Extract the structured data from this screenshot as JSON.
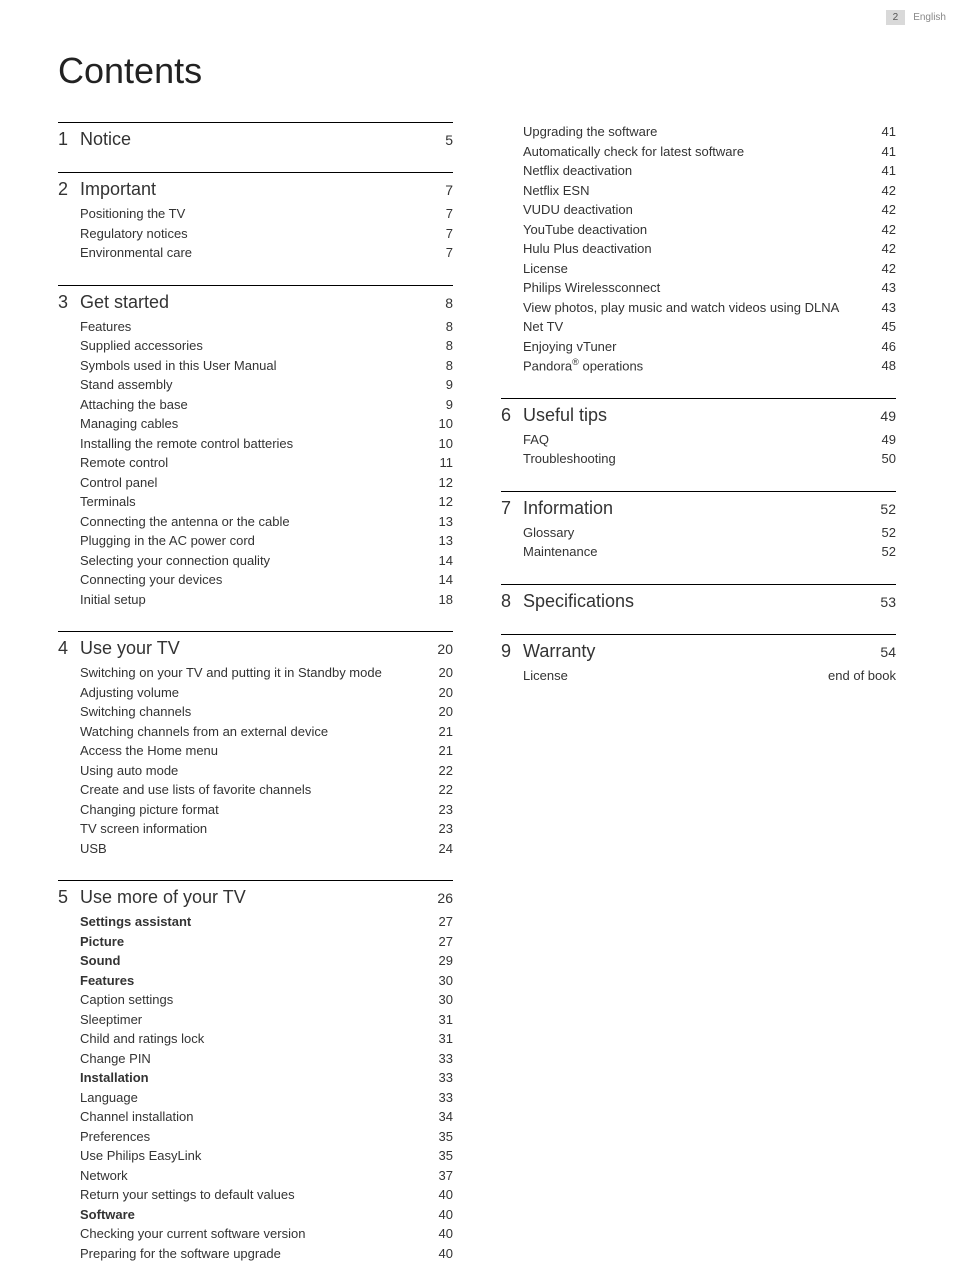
{
  "header": {
    "page_number": "2",
    "language": "English"
  },
  "title": "Contents",
  "columns": [
    [
      {
        "num": "1",
        "title": "Notice",
        "page": "5",
        "entries": []
      },
      {
        "num": "2",
        "title": "Important",
        "page": "7",
        "entries": [
          {
            "label": "Positioning the TV",
            "page": "7"
          },
          {
            "label": "Regulatory notices",
            "page": "7"
          },
          {
            "label": "Environmental care",
            "page": "7"
          }
        ]
      },
      {
        "num": "3",
        "title": "Get started",
        "page": "8",
        "entries": [
          {
            "label": "Features",
            "page": "8"
          },
          {
            "label": "Supplied accessories",
            "page": "8"
          },
          {
            "label": "Symbols used in this User Manual",
            "page": "8"
          },
          {
            "label": "Stand assembly",
            "page": "9"
          },
          {
            "label": "Attaching the base",
            "page": "9"
          },
          {
            "label": "Managing cables",
            "page": "10"
          },
          {
            "label": "Installing the remote control batteries",
            "page": "10"
          },
          {
            "label": "Remote control",
            "page": "11"
          },
          {
            "label": "Control panel",
            "page": "12"
          },
          {
            "label": "Terminals",
            "page": "12"
          },
          {
            "label": "Connecting the antenna or the cable",
            "page": "13"
          },
          {
            "label": "Plugging in the AC power cord",
            "page": "13"
          },
          {
            "label": "Selecting your connection quality",
            "page": "14"
          },
          {
            "label": "Connecting your devices",
            "page": "14"
          },
          {
            "label": "Initial setup",
            "page": "18"
          }
        ]
      },
      {
        "num": "4",
        "title": "Use your TV",
        "page": "20",
        "entries": [
          {
            "label": "Switching on your TV and putting it in Standby mode",
            "page": "20"
          },
          {
            "label": "Adjusting volume",
            "page": "20"
          },
          {
            "label": "Switching channels",
            "page": "20"
          },
          {
            "label": "Watching channels from an external device",
            "page": "21"
          },
          {
            "label": "Access the Home menu",
            "page": "21"
          },
          {
            "label": "Using auto mode",
            "page": "22"
          },
          {
            "label": "Create and use lists of favorite channels",
            "page": "22"
          },
          {
            "label": "Changing picture format",
            "page": "23"
          },
          {
            "label": "TV screen information",
            "page": "23"
          },
          {
            "label": "USB",
            "page": "24"
          }
        ]
      },
      {
        "num": "5",
        "title": "Use more of your TV",
        "page": "26",
        "entries": [
          {
            "label": "Settings assistant",
            "page": "27",
            "bold": true
          },
          {
            "label": "Picture",
            "page": "27",
            "bold": true
          },
          {
            "label": "Sound",
            "page": "29",
            "bold": true
          },
          {
            "label": "Features",
            "page": "30",
            "bold": true
          },
          {
            "label": "Caption settings",
            "page": "30"
          },
          {
            "label": "Sleeptimer",
            "page": "31"
          },
          {
            "label": "Child and ratings lock",
            "page": "31"
          },
          {
            "label": "Change PIN",
            "page": "33"
          },
          {
            "label": "Installation",
            "page": "33",
            "bold": true
          },
          {
            "label": "Language",
            "page": "33"
          },
          {
            "label": "Channel installation",
            "page": "34"
          },
          {
            "label": "Preferences",
            "page": "35"
          },
          {
            "label": "Use Philips EasyLink",
            "page": "35"
          },
          {
            "label": "Network",
            "page": "37"
          },
          {
            "label": "Return your settings to default values",
            "page": "40"
          },
          {
            "label": "Software",
            "page": "40",
            "bold": true
          },
          {
            "label": "Checking your current software version",
            "page": "40"
          },
          {
            "label": "Preparing for the software upgrade",
            "page": "40"
          }
        ]
      }
    ],
    [
      {
        "continuation": true,
        "entries": [
          {
            "label": "Upgrading the software",
            "page": "41"
          },
          {
            "label": "Automatically check for latest software",
            "page": "41"
          },
          {
            "label": "Netflix deactivation",
            "page": "41"
          },
          {
            "label": "Netflix ESN",
            "page": "42"
          },
          {
            "label": "VUDU deactivation",
            "page": "42"
          },
          {
            "label": "YouTube deactivation",
            "page": "42"
          },
          {
            "label": "Hulu Plus deactivation",
            "page": "42"
          },
          {
            "label": "License",
            "page": "42"
          },
          {
            "label": "Philips Wirelessconnect",
            "page": "43"
          },
          {
            "label": "View photos, play music and watch videos using DLNA",
            "page": "43"
          },
          {
            "label": "Net TV",
            "page": "45"
          },
          {
            "label": "Enjoying vTuner",
            "page": "46"
          },
          {
            "label": "Pandora® operations",
            "page": "48",
            "sup": true
          }
        ]
      },
      {
        "num": "6",
        "title": "Useful tips",
        "page": "49",
        "entries": [
          {
            "label": "FAQ",
            "page": "49"
          },
          {
            "label": "Troubleshooting",
            "page": "50"
          }
        ]
      },
      {
        "num": "7",
        "title": "Information",
        "page": "52",
        "entries": [
          {
            "label": "Glossary",
            "page": "52"
          },
          {
            "label": "Maintenance",
            "page": "52"
          }
        ]
      },
      {
        "num": "8",
        "title": "Specifications",
        "page": "53",
        "entries": []
      },
      {
        "num": "9",
        "title": "Warranty",
        "page": "54",
        "entries": [
          {
            "label": "License",
            "page": "end of book"
          }
        ]
      }
    ]
  ]
}
